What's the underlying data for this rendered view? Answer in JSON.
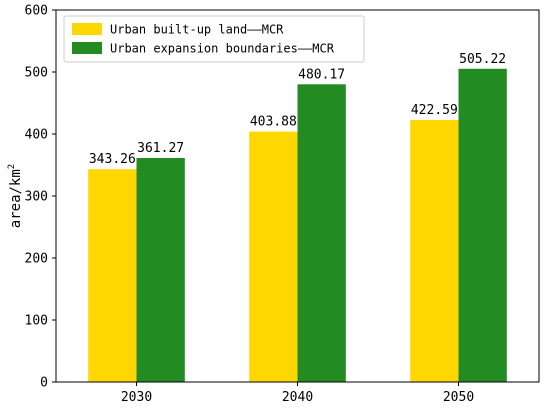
{
  "chart_data": {
    "type": "bar",
    "categories": [
      "2030",
      "2040",
      "2050"
    ],
    "series": [
      {
        "name": "Urban built-up land——MCR",
        "color": "#FFD700",
        "values": [
          343.26,
          403.88,
          422.59
        ],
        "labels": [
          "343.26",
          "403.88",
          "422.59"
        ]
      },
      {
        "name": "Urban expansion boundaries——MCR",
        "color": "#228B22",
        "values": [
          361.27,
          480.17,
          505.22
        ],
        "labels": [
          "361.27",
          "480.17",
          "505.22"
        ]
      }
    ],
    "ylabel": "area/km",
    "ylabel_superscript": "2",
    "ylim": [
      0,
      600
    ],
    "yticks": [
      0,
      100,
      200,
      300,
      400,
      500,
      600
    ],
    "ytick_labels": [
      "0",
      "100",
      "200",
      "300",
      "400",
      "500",
      "600"
    ],
    "grid": false,
    "legend_position": "top-left"
  }
}
